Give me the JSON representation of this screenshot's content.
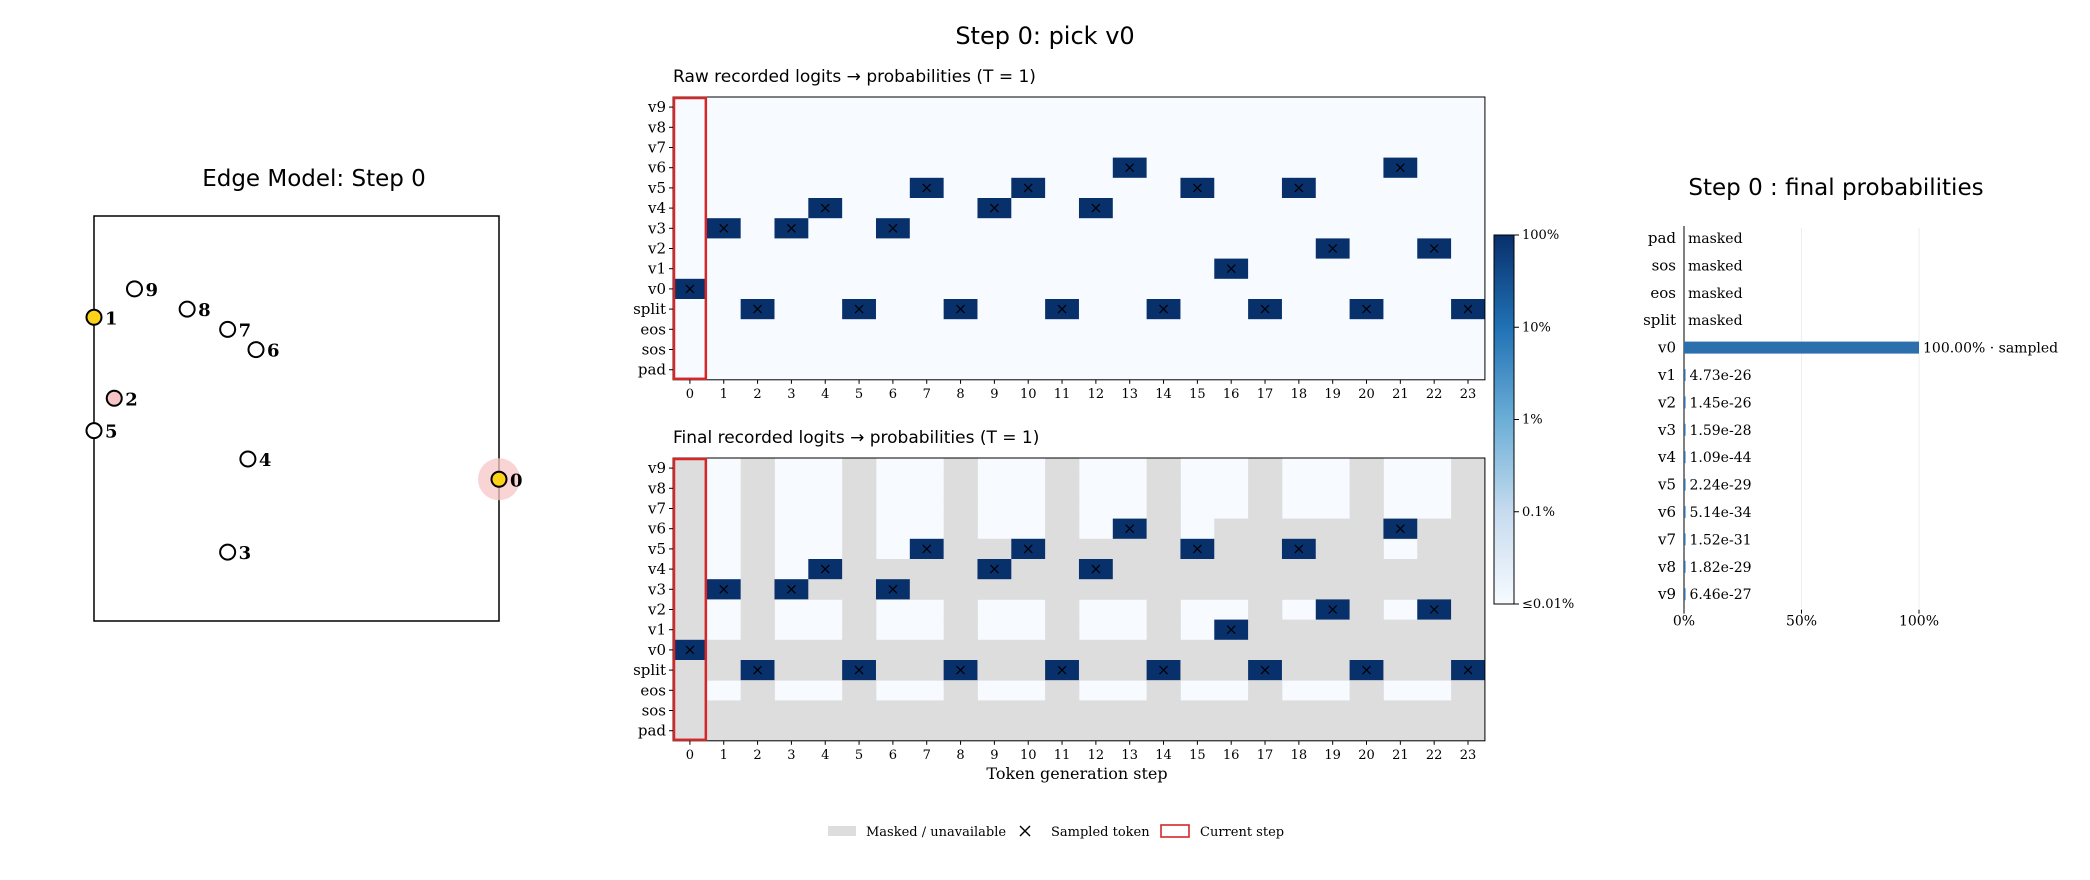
{
  "suptitle": "Step 0: pick v0",
  "colors": {
    "masked": "#dddddd",
    "current_step": "#d62728",
    "selected_node": "#ffd21a",
    "node_halo": "#f7c5c7",
    "bar": "#2c6fad",
    "cmap_low": "#f7fbff",
    "cmap_high": "#08306b"
  },
  "chart_data": [
    {
      "type": "scatter",
      "title": "Edge Model: Step 0",
      "nodes": [
        {
          "label": "0",
          "x": 1.0,
          "y": 0.35,
          "state": "selected"
        },
        {
          "label": "1",
          "x": 0.0,
          "y": 0.75,
          "state": "selected"
        },
        {
          "label": "2",
          "x": 0.05,
          "y": 0.55,
          "state": "highlight"
        },
        {
          "label": "3",
          "x": 0.33,
          "y": 0.17,
          "state": "normal"
        },
        {
          "label": "4",
          "x": 0.38,
          "y": 0.4,
          "state": "normal"
        },
        {
          "label": "5",
          "x": 0.0,
          "y": 0.47,
          "state": "normal"
        },
        {
          "label": "6",
          "x": 0.4,
          "y": 0.67,
          "state": "normal"
        },
        {
          "label": "7",
          "x": 0.33,
          "y": 0.72,
          "state": "normal"
        },
        {
          "label": "8",
          "x": 0.23,
          "y": 0.77,
          "state": "normal"
        },
        {
          "label": "9",
          "x": 0.1,
          "y": 0.82,
          "state": "normal"
        }
      ]
    },
    {
      "type": "heatmap",
      "title": "Raw recorded logits → probabilities (T = 1)",
      "xlabel": "",
      "rows": [
        "pad",
        "sos",
        "eos",
        "split",
        "v0",
        "v1",
        "v2",
        "v3",
        "v4",
        "v5",
        "v6",
        "v7",
        "v8",
        "v9"
      ],
      "columns": [
        "0",
        "1",
        "2",
        "3",
        "4",
        "5",
        "6",
        "7",
        "8",
        "9",
        "10",
        "11",
        "12",
        "13",
        "14",
        "15",
        "16",
        "17",
        "18",
        "19",
        "20",
        "21",
        "22",
        "23"
      ],
      "sampled": [
        "v0",
        "v3",
        "split",
        "v3",
        "v4",
        "split",
        "v3",
        "v5",
        "split",
        "v4",
        "v5",
        "split",
        "v4",
        "v6",
        "split",
        "v5",
        "v1",
        "split",
        "v5",
        "v2",
        "split",
        "v6",
        "v2",
        "split"
      ],
      "masked": [],
      "current_step": 0
    },
    {
      "type": "heatmap",
      "title": "Final recorded logits → probabilities (T = 1)",
      "xlabel": "Token generation step",
      "rows": [
        "pad",
        "sos",
        "eos",
        "split",
        "v0",
        "v1",
        "v2",
        "v3",
        "v4",
        "v5",
        "v6",
        "v7",
        "v8",
        "v9"
      ],
      "columns": [
        "0",
        "1",
        "2",
        "3",
        "4",
        "5",
        "6",
        "7",
        "8",
        "9",
        "10",
        "11",
        "12",
        "13",
        "14",
        "15",
        "16",
        "17",
        "18",
        "19",
        "20",
        "21",
        "22",
        "23"
      ],
      "sampled": [
        "v0",
        "v3",
        "split",
        "v3",
        "v4",
        "split",
        "v3",
        "v5",
        "split",
        "v4",
        "v5",
        "split",
        "v4",
        "v6",
        "split",
        "v5",
        "v1",
        "split",
        "v5",
        "v2",
        "split",
        "v6",
        "v2",
        "split"
      ],
      "masked": [
        [
          "pad",
          "sos",
          "eos",
          "split",
          "v1",
          "v2",
          "v3",
          "v4",
          "v5",
          "v6",
          "v7",
          "v8",
          "v9"
        ],
        [
          "pad",
          "sos",
          "split",
          "v0"
        ],
        [
          "pad",
          "sos",
          "eos",
          "v0",
          "v1",
          "v2",
          "v3",
          "v4",
          "v5",
          "v6",
          "v7",
          "v8",
          "v9"
        ],
        [
          "pad",
          "sos",
          "split",
          "v0"
        ],
        [
          "pad",
          "sos",
          "split",
          "v0",
          "v3"
        ],
        [
          "pad",
          "sos",
          "eos",
          "v0",
          "v1",
          "v2",
          "v3",
          "v4",
          "v5",
          "v6",
          "v7",
          "v8",
          "v9"
        ],
        [
          "pad",
          "sos",
          "split",
          "v0",
          "v3",
          "v4"
        ],
        [
          "pad",
          "sos",
          "split",
          "v0",
          "v3",
          "v4"
        ],
        [
          "pad",
          "sos",
          "eos",
          "v0",
          "v1",
          "v2",
          "v3",
          "v4",
          "v5",
          "v6",
          "v7",
          "v8",
          "v9"
        ],
        [
          "pad",
          "sos",
          "split",
          "v0",
          "v3",
          "v4",
          "v5"
        ],
        [
          "pad",
          "sos",
          "split",
          "v0",
          "v3",
          "v4",
          "v5"
        ],
        [
          "pad",
          "sos",
          "eos",
          "v0",
          "v1",
          "v2",
          "v3",
          "v4",
          "v5",
          "v6",
          "v7",
          "v8",
          "v9"
        ],
        [
          "pad",
          "sos",
          "split",
          "v0",
          "v3",
          "v4",
          "v5"
        ],
        [
          "pad",
          "sos",
          "split",
          "v0",
          "v3",
          "v4",
          "v5"
        ],
        [
          "pad",
          "sos",
          "eos",
          "v0",
          "v1",
          "v2",
          "v3",
          "v4",
          "v5",
          "v6",
          "v7",
          "v8",
          "v9"
        ],
        [
          "pad",
          "sos",
          "split",
          "v0",
          "v3",
          "v4"
        ],
        [
          "pad",
          "sos",
          "split",
          "v0",
          "v3",
          "v4",
          "v5",
          "v6"
        ],
        [
          "pad",
          "sos",
          "eos",
          "v0",
          "v1",
          "v2",
          "v3",
          "v4",
          "v5",
          "v6",
          "v7",
          "v8",
          "v9"
        ],
        [
          "pad",
          "sos",
          "split",
          "v0",
          "v1",
          "v3",
          "v4",
          "v6"
        ],
        [
          "pad",
          "sos",
          "split",
          "v0",
          "v1",
          "v3",
          "v4",
          "v5",
          "v6"
        ],
        [
          "pad",
          "sos",
          "eos",
          "v0",
          "v1",
          "v2",
          "v3",
          "v4",
          "v5",
          "v6",
          "v7",
          "v8",
          "v9"
        ],
        [
          "pad",
          "sos",
          "split",
          "v0",
          "v1",
          "v3",
          "v4",
          "v6"
        ],
        [
          "pad",
          "sos",
          "split",
          "v0",
          "v1",
          "v3",
          "v4",
          "v5",
          "v6"
        ],
        [
          "pad",
          "sos",
          "eos",
          "v0",
          "v1",
          "v2",
          "v3",
          "v4",
          "v5",
          "v6",
          "v7",
          "v8",
          "v9"
        ]
      ],
      "current_step": 0
    },
    {
      "type": "colorbar",
      "scale": "log",
      "ticks": [
        "100%",
        "10%",
        "1%",
        "0.1%",
        "≤0.01%"
      ]
    },
    {
      "type": "bar",
      "orientation": "horizontal",
      "title": "Step 0 : final probabilities",
      "categories": [
        "pad",
        "sos",
        "eos",
        "split",
        "v0",
        "v1",
        "v2",
        "v3",
        "v4",
        "v5",
        "v6",
        "v7",
        "v8",
        "v9"
      ],
      "values": [
        0,
        0,
        0,
        0,
        100,
        4.73e-24,
        1.45e-24,
        1.59e-26,
        1.09e-42,
        2.24e-27,
        5.14e-32,
        1.52e-29,
        1.82e-27,
        6.46e-25
      ],
      "labels": [
        "masked",
        "masked",
        "masked",
        "masked",
        "100.00% · sampled",
        "4.73e-26",
        "1.45e-26",
        "1.59e-28",
        "1.09e-44",
        "2.24e-29",
        "5.14e-34",
        "1.52e-31",
        "1.82e-29",
        "6.46e-27"
      ],
      "xlim": [
        0,
        100
      ],
      "xticks": [
        "0%",
        "50%",
        "100%"
      ],
      "grid": true
    }
  ],
  "legend": [
    {
      "key": "masked",
      "label": "Masked / unavailable"
    },
    {
      "key": "sampled",
      "label": "Sampled token"
    },
    {
      "key": "current",
      "label": "Current step"
    }
  ]
}
